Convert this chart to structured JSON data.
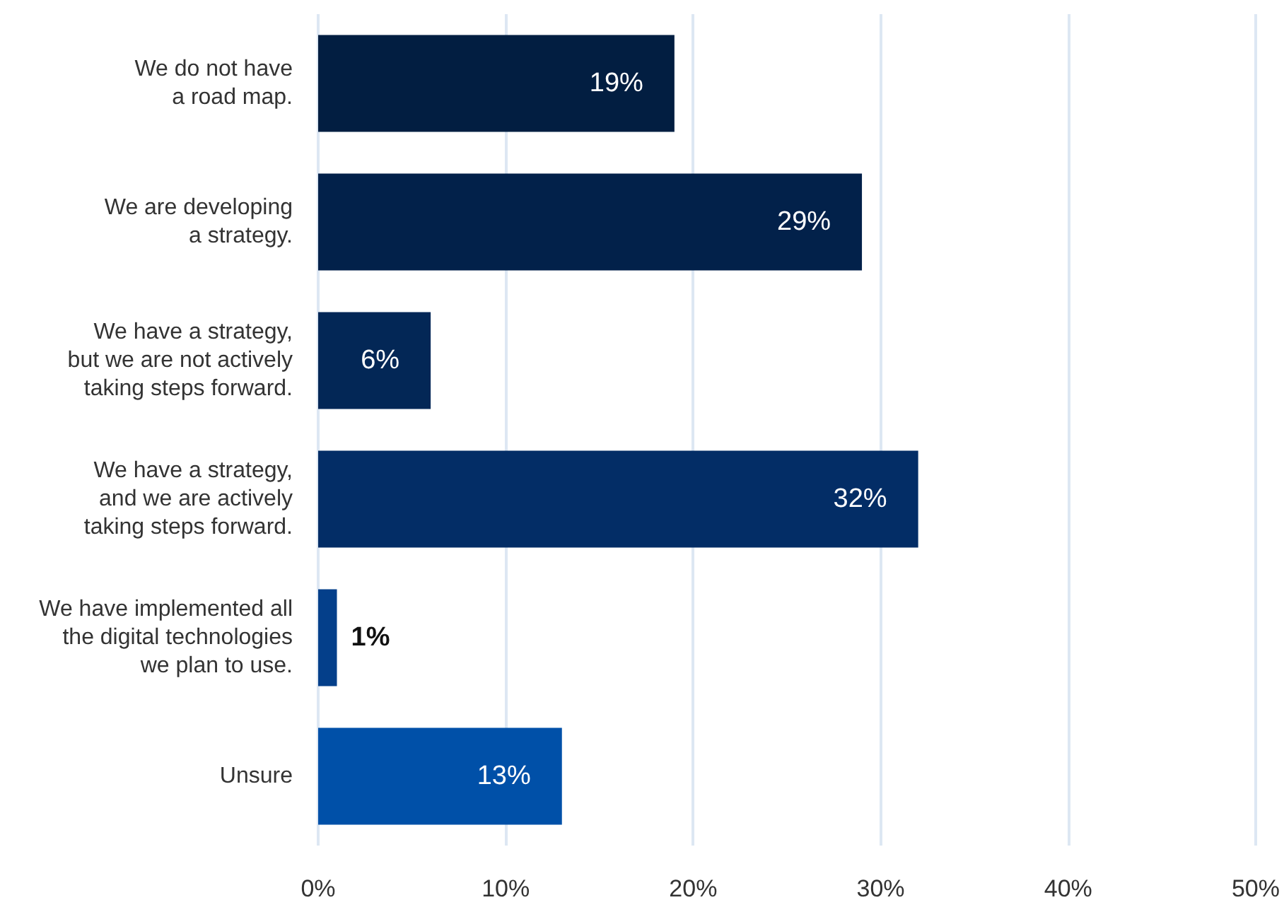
{
  "chart_data": {
    "type": "bar",
    "orientation": "horizontal",
    "categories": [
      "We do not have\na road map.",
      "We are developing\na strategy.",
      "We have a strategy,\nbut we are not actively\ntaking steps forward.",
      "We have a strategy,\nand we are actively\ntaking steps forward.",
      "We have implemented all\nthe digital technologies\nwe plan to use.",
      "Unsure"
    ],
    "values": [
      19,
      29,
      6,
      32,
      1,
      13
    ],
    "colors": [
      "#021e41",
      "#02214a",
      "#032756",
      "#032d66",
      "#043f8a",
      "#0050a8"
    ],
    "value_labels": [
      "19%",
      "29%",
      "6%",
      "32%",
      "1%",
      "13%"
    ],
    "xlim": [
      0,
      50
    ],
    "xticks": [
      {
        "value": 0,
        "label": "0%"
      },
      {
        "value": 10,
        "label": "10%"
      },
      {
        "value": 20,
        "label": "20%"
      },
      {
        "value": 30,
        "label": "30%"
      },
      {
        "value": 40,
        "label": "40%"
      },
      {
        "value": 50,
        "label": "50%"
      }
    ],
    "grid": "x"
  }
}
